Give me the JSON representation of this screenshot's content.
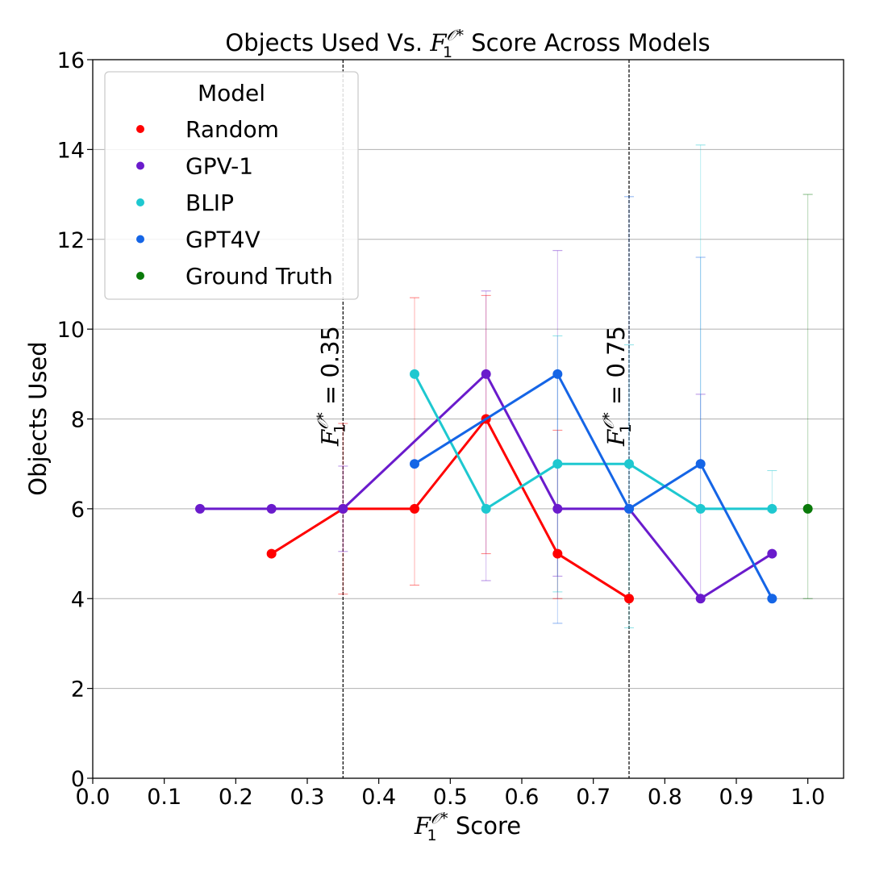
{
  "chart_data": {
    "type": "line",
    "title": {
      "prefix": "Objects Used Vs. ",
      "math_base": "F",
      "math_sup": "𝒪*",
      "math_sub": "1",
      "suffix": " Score Across Models"
    },
    "xlabel": {
      "math_base": "F",
      "math_sup": "𝒪*",
      "math_sub": "1",
      "suffix": " Score"
    },
    "ylabel": "Objects Used",
    "xlim": [
      0.0,
      1.05
    ],
    "ylim": [
      0,
      16
    ],
    "xticks": [
      0.0,
      0.1,
      0.2,
      0.3,
      0.4,
      0.5,
      0.6,
      0.7,
      0.8,
      0.9,
      1.0
    ],
    "xtick_labels": [
      "0.0",
      "0.1",
      "0.2",
      "0.3",
      "0.4",
      "0.5",
      "0.6",
      "0.7",
      "0.8",
      "0.9",
      "1.0"
    ],
    "yticks": [
      0,
      2,
      4,
      6,
      8,
      10,
      12,
      14,
      16
    ],
    "ytick_labels": [
      "0",
      "2",
      "4",
      "6",
      "8",
      "10",
      "12",
      "14",
      "16"
    ],
    "grid": "horizontal",
    "legend": {
      "title": "Model",
      "placement": "top-left"
    },
    "vlines": [
      {
        "x": 0.35,
        "label_base": "F",
        "label_sup": "𝒪*",
        "label_sub": "1",
        "label_value": " = 0.35"
      },
      {
        "x": 0.75,
        "label_base": "F",
        "label_sup": "𝒪*",
        "label_sub": "1",
        "label_value": " = 0.75"
      }
    ],
    "series": [
      {
        "name": "Random",
        "color": "#ff0000",
        "x": [
          0.25,
          0.35,
          0.45,
          0.55,
          0.65,
          0.75
        ],
        "y": [
          5,
          6,
          6,
          8,
          5,
          4
        ],
        "err_low": [
          null,
          4.1,
          4.3,
          5.0,
          4.0,
          null
        ],
        "err_high": [
          null,
          7.9,
          10.7,
          10.75,
          7.75,
          null
        ]
      },
      {
        "name": "GPV-1",
        "color": "#6a1bcc",
        "x": [
          0.15,
          0.25,
          0.35,
          0.55,
          0.65,
          0.75,
          0.85,
          0.95
        ],
        "y": [
          6,
          6,
          6,
          9,
          6,
          6,
          4,
          5
        ],
        "err_low": [
          null,
          null,
          5.05,
          4.4,
          4.5,
          null,
          null,
          null
        ],
        "err_high": [
          null,
          null,
          6.95,
          10.85,
          11.75,
          null,
          8.55,
          null
        ]
      },
      {
        "name": "BLIP",
        "color": "#1ec8d0",
        "x": [
          0.45,
          0.55,
          0.65,
          0.75,
          0.85,
          0.95
        ],
        "y": [
          9,
          6,
          7,
          7,
          6,
          6
        ],
        "err_low": [
          null,
          null,
          4.15,
          3.35,
          null,
          5.95
        ],
        "err_high": [
          null,
          null,
          9.85,
          9.65,
          14.1,
          6.85
        ]
      },
      {
        "name": "GPT4V",
        "color": "#1565e6",
        "x": [
          0.45,
          0.65,
          0.75,
          0.85,
          0.95
        ],
        "y": [
          7,
          9,
          6,
          7,
          4
        ],
        "err_low": [
          null,
          3.45,
          null,
          null,
          null
        ],
        "err_high": [
          null,
          null,
          12.95,
          11.6,
          null
        ]
      },
      {
        "name": "Ground Truth",
        "color": "#0a7a0a",
        "x": [
          1.0
        ],
        "y": [
          6
        ],
        "err_low": [
          4.0
        ],
        "err_high": [
          13.0
        ]
      }
    ]
  }
}
